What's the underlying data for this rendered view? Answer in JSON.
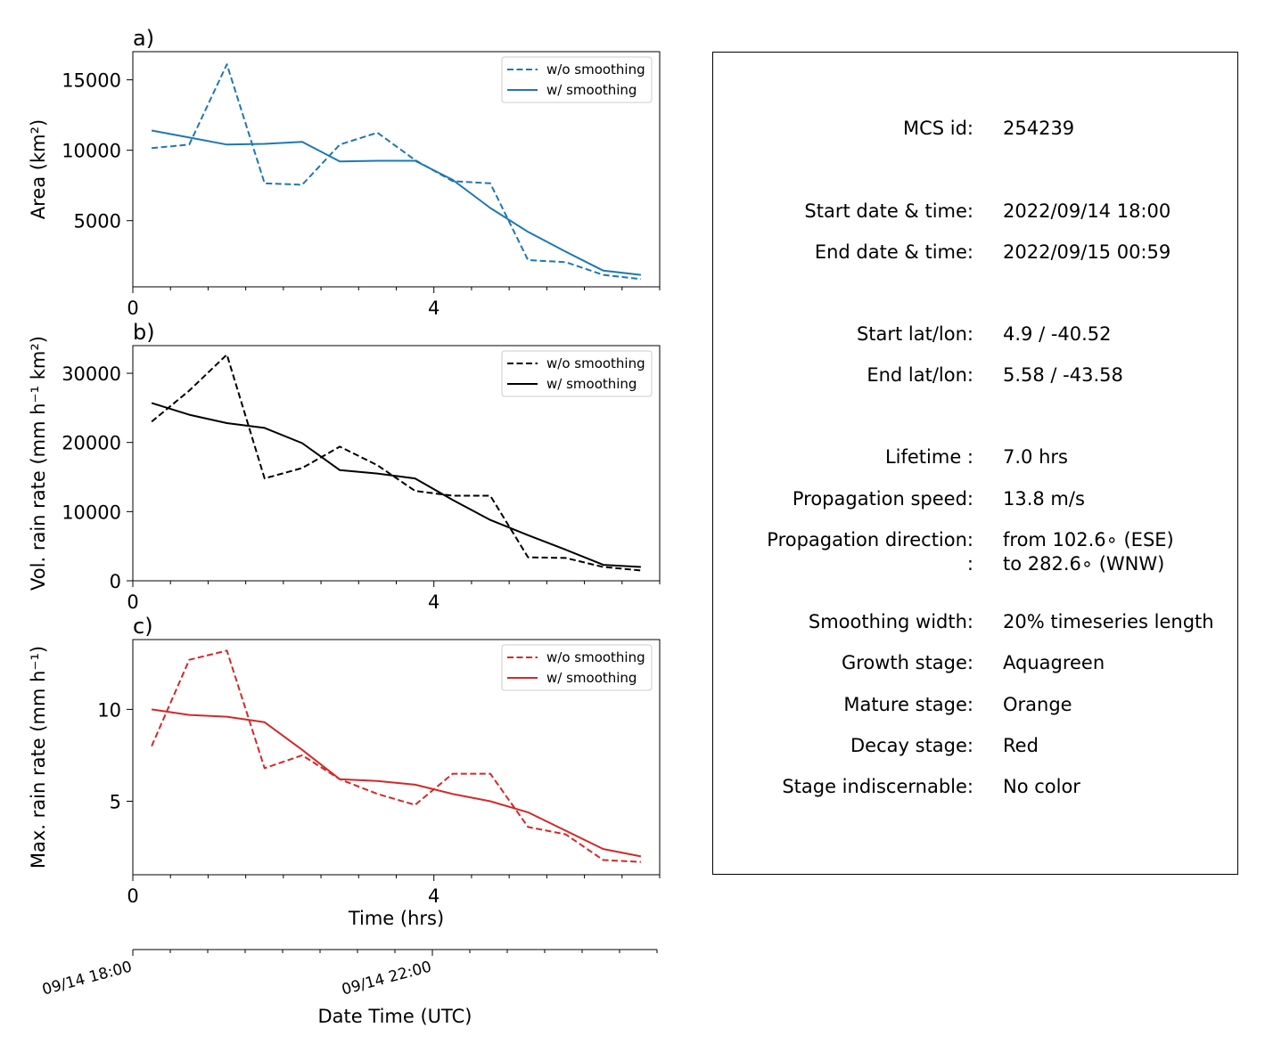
{
  "chart_data": [
    {
      "type": "line",
      "panel_label": "a)",
      "ylabel": "Area  (km²)",
      "x_ticks": [
        0,
        4
      ],
      "ylim": [
        300,
        17000
      ],
      "y_ticks": [
        5000,
        10000,
        15000
      ],
      "color": "#1f77b4",
      "legend_position": "top-right",
      "series": [
        {
          "name": "w/o smoothing",
          "style": "dashed",
          "x": [
            0.25,
            0.75,
            1.25,
            1.75,
            2.25,
            2.75,
            3.25,
            3.75,
            4.25,
            4.75,
            5.25,
            5.75,
            6.25,
            6.75
          ],
          "y": [
            10150,
            10400,
            16100,
            7650,
            7550,
            10400,
            11250,
            9300,
            7800,
            7650,
            2200,
            2050,
            1150,
            850
          ]
        },
        {
          "name": "w/ smoothing",
          "style": "solid",
          "x": [
            0.25,
            0.75,
            1.25,
            1.75,
            2.25,
            2.75,
            3.25,
            3.75,
            4.25,
            4.75,
            5.25,
            5.75,
            6.25,
            6.75
          ],
          "y": [
            11400,
            10900,
            10400,
            10450,
            10600,
            9200,
            9250,
            9250,
            7900,
            5900,
            4200,
            2800,
            1450,
            1150
          ]
        }
      ]
    },
    {
      "type": "line",
      "panel_label": "b)",
      "ylabel": "Vol. rain rate (mm h⁻¹ km²)",
      "x_ticks": [
        0,
        4
      ],
      "ylim": [
        0,
        34000
      ],
      "y_ticks": [
        0,
        10000,
        20000,
        30000
      ],
      "color": "#000000",
      "legend_position": "top-right",
      "series": [
        {
          "name": "w/o smoothing",
          "style": "dashed",
          "x": [
            0.25,
            0.75,
            1.25,
            1.75,
            2.25,
            2.75,
            3.25,
            3.75,
            4.25,
            4.75,
            5.25,
            5.75,
            6.25,
            6.75
          ],
          "y": [
            23000,
            27500,
            32700,
            14800,
            16300,
            19400,
            16700,
            13000,
            12300,
            12300,
            3400,
            3300,
            2000,
            1500
          ]
        },
        {
          "name": "w/ smoothing",
          "style": "solid",
          "x": [
            0.25,
            0.75,
            1.25,
            1.75,
            2.25,
            2.75,
            3.25,
            3.75,
            4.25,
            4.75,
            5.25,
            5.75,
            6.25,
            6.75
          ],
          "y": [
            25700,
            24000,
            22800,
            22100,
            19900,
            16000,
            15500,
            14800,
            11700,
            8800,
            6600,
            4500,
            2300,
            2000
          ]
        }
      ]
    },
    {
      "type": "line",
      "panel_label": "c)",
      "ylabel": "Max. rain rate  (mm h⁻¹)",
      "xlabel": "Time (hrs)",
      "x_ticks": [
        0,
        4
      ],
      "ylim": [
        1.0,
        13.8
      ],
      "y_ticks": [
        5,
        10
      ],
      "color": "#d62728",
      "legend_position": "top-right",
      "series": [
        {
          "name": "w/o smoothing",
          "style": "dashed",
          "x": [
            0.25,
            0.75,
            1.25,
            1.75,
            2.25,
            2.75,
            3.25,
            3.75,
            4.25,
            4.75,
            5.25,
            5.75,
            6.25,
            6.75
          ],
          "y": [
            8.0,
            12.7,
            13.2,
            6.8,
            7.5,
            6.2,
            5.4,
            4.8,
            6.5,
            6.5,
            3.6,
            3.2,
            1.8,
            1.7
          ]
        },
        {
          "name": "w/ smoothing",
          "style": "solid",
          "x": [
            0.25,
            0.75,
            1.25,
            1.75,
            2.25,
            2.75,
            3.25,
            3.75,
            4.25,
            4.75,
            5.25,
            5.75,
            6.25,
            6.75
          ],
          "y": [
            10.0,
            9.7,
            9.6,
            9.3,
            7.8,
            6.2,
            6.1,
            5.9,
            5.4,
            5.0,
            4.4,
            3.4,
            2.4,
            2.0
          ]
        }
      ]
    }
  ],
  "datetime_axis": {
    "label": "Date Time (UTC)",
    "ticks": [
      {
        "hour": 0,
        "label": "09/14 18:00"
      },
      {
        "hour": 4,
        "label": "09/14 22:00"
      }
    ]
  },
  "info": {
    "rows": [
      {
        "key": "MCS id:",
        "value": "254239"
      },
      {
        "key": "Start date & time:",
        "value": "2022/09/14 18:00"
      },
      {
        "key": "End date & time:",
        "value": "2022/09/15 00:59"
      },
      {
        "key": "Start lat/lon:",
        "value": "4.9 / -40.52"
      },
      {
        "key": "End lat/lon:",
        "value": "5.58 / -43.58"
      },
      {
        "key": "Lifetime :",
        "value": "7.0 hrs"
      },
      {
        "key": "Propagation speed:",
        "value": "13.8 m/s"
      },
      {
        "key": "Propagation direction:",
        "value": "from 102.6∘ (ESE)"
      },
      {
        "key": ":",
        "value": "to   282.6∘ (WNW)"
      },
      {
        "key": "Smoothing width:",
        "value": "20% timeseries length"
      },
      {
        "key": "Growth stage:",
        "value": "Aquagreen"
      },
      {
        "key": "Mature stage:",
        "value": "Orange"
      },
      {
        "key": "Decay stage:",
        "value": "Red"
      },
      {
        "key": "Stage indiscernable:",
        "value": "No color"
      }
    ]
  }
}
